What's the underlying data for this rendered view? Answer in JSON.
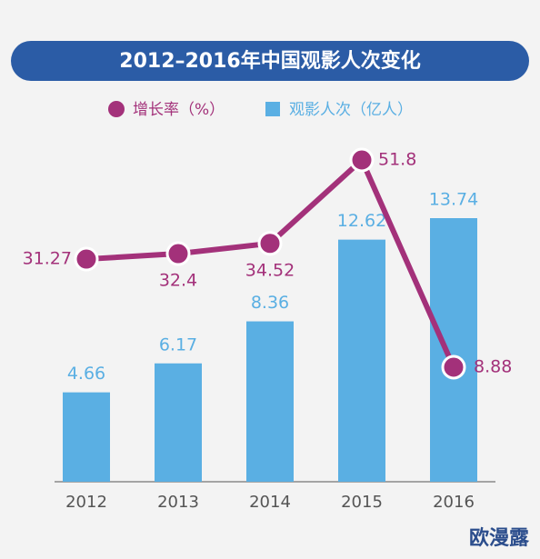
{
  "chart_data": {
    "type": "bar",
    "title": "2012–2016年中国观影人次变化",
    "categories": [
      "2012",
      "2013",
      "2014",
      "2015",
      "2016"
    ],
    "series": [
      {
        "name": "增长率（%）",
        "type": "line",
        "color": "#a3317a",
        "values": [
          31.27,
          32.4,
          34.52,
          51.8,
          8.88
        ]
      },
      {
        "name": "观影人次（亿人）",
        "type": "bar",
        "color": "#5aafe3",
        "values": [
          4.66,
          6.17,
          8.36,
          12.62,
          13.74
        ]
      }
    ],
    "watermark": "欧漫露"
  }
}
